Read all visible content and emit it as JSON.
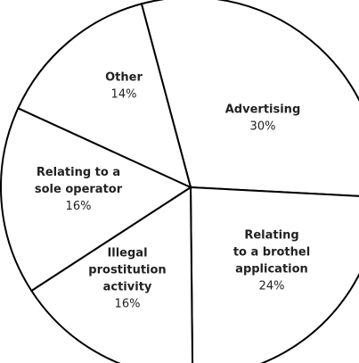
{
  "chart_data": {
    "type": "pie",
    "title": "",
    "slices": [
      {
        "label": [
          "Advertising"
        ],
        "value": 30,
        "value_label": "30%"
      },
      {
        "label": [
          "Relating",
          "to a brothel",
          "application"
        ],
        "value": 24,
        "value_label": "24%"
      },
      {
        "label": [
          "Illegal",
          "prostitution",
          "activity"
        ],
        "value": 16,
        "value_label": "16%"
      },
      {
        "label": [
          "Relating to a",
          "sole operator"
        ],
        "value": 16,
        "value_label": "16%"
      },
      {
        "label": [
          "Other"
        ],
        "value": 14,
        "value_label": "14%"
      }
    ],
    "start_angle_deg": 105,
    "direction": "clockwise",
    "legend": "none",
    "colors": {
      "fill": "#ffffff",
      "stroke": "#000000",
      "text": "#222222"
    }
  }
}
